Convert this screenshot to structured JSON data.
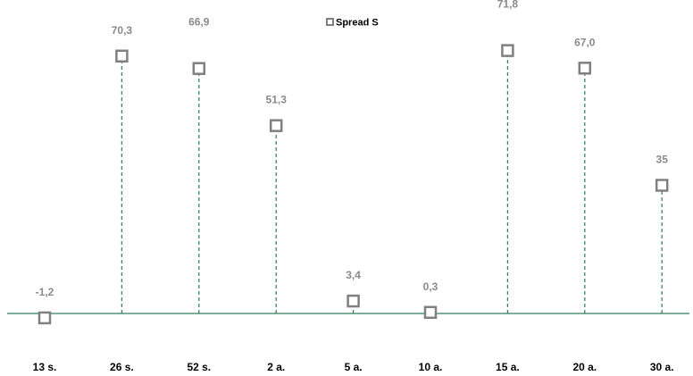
{
  "chart_data": {
    "type": "scatter",
    "categories": [
      "13 s.",
      "26 s.",
      "52 s.",
      "2 a.",
      "5 a.",
      "10 a.",
      "15 a.",
      "20 a.",
      "30 a."
    ],
    "series": [
      {
        "name": "Spread S",
        "values": [
          -1.2,
          70.3,
          66.9,
          51.3,
          3.4,
          0.3,
          71.8,
          67.0,
          35
        ],
        "data_labels": [
          "-1,2",
          "70,3",
          "66,9",
          "51,3",
          "3,4",
          "0,3",
          "71,8",
          "67,0",
          "35"
        ]
      }
    ],
    "title": "",
    "xlabel": "",
    "ylabel": "",
    "legend": "top-center",
    "grid": false,
    "drop_lines": true,
    "colors": {
      "marker": "#808080",
      "axis": "#2e7d5b",
      "drop_line": "#2e7d5b",
      "label": "#8a8a8a",
      "category_label": "#000000"
    }
  }
}
